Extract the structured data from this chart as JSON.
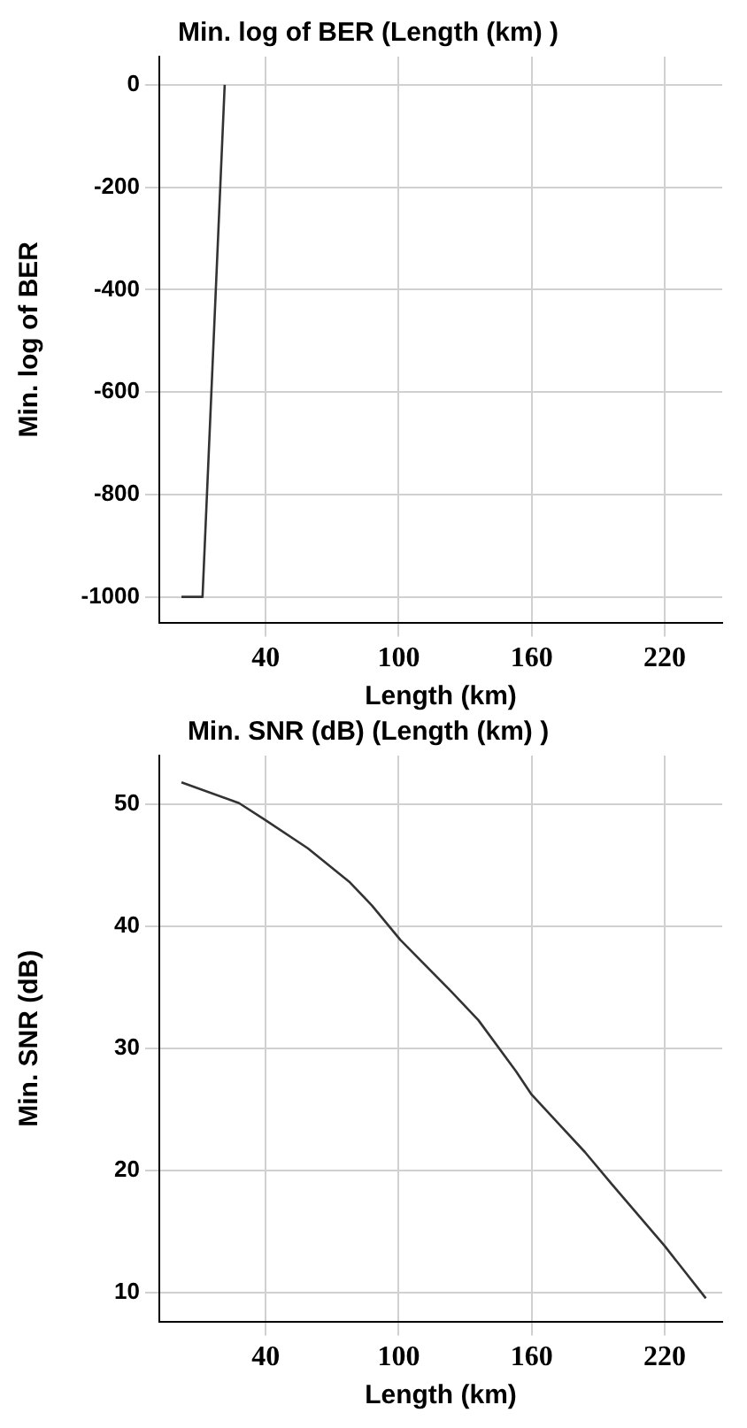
{
  "chart_data": [
    {
      "type": "line",
      "title": "Min. log of BER (Length (km) )",
      "xlabel": "Length (km)",
      "ylabel": "Min. log of BER",
      "x": [
        2,
        11.5,
        21.5
      ],
      "series": [
        {
          "color": "#333333",
          "values": [
            -1000,
            -1000,
            0
          ]
        }
      ],
      "xlim": [
        -8,
        246
      ],
      "xticks": [
        40,
        100,
        160,
        220
      ],
      "ylim": [
        -1050,
        55
      ],
      "yticks": [
        0,
        -200,
        -400,
        -600,
        -800,
        -1000
      ],
      "grid": true,
      "legend": false,
      "marker": "none",
      "line_style": "solid"
    },
    {
      "type": "line",
      "title": "Min. SNR (dB) (Length (km) )",
      "xlabel": "Length (km)",
      "ylabel": "Min. SNR (dB)",
      "x": [
        2,
        28,
        40,
        59,
        78,
        88,
        100.7,
        124,
        136,
        153,
        160,
        184,
        196,
        220,
        238.6
      ],
      "series": [
        {
          "color": "#333333",
          "values": [
            51.8,
            50.1,
            48.7,
            46.4,
            43.6,
            41.7,
            38.9,
            34.6,
            32.3,
            28.1,
            26.2,
            21.5,
            18.9,
            13.8,
            9.5
          ]
        }
      ],
      "xlim": [
        -8,
        246
      ],
      "xticks": [
        40,
        100,
        160,
        220
      ],
      "ylim": [
        7.6,
        54
      ],
      "yticks": [
        10,
        20,
        30,
        40,
        50
      ],
      "grid": true,
      "legend": false,
      "marker": "none",
      "line_style": "solid"
    }
  ]
}
